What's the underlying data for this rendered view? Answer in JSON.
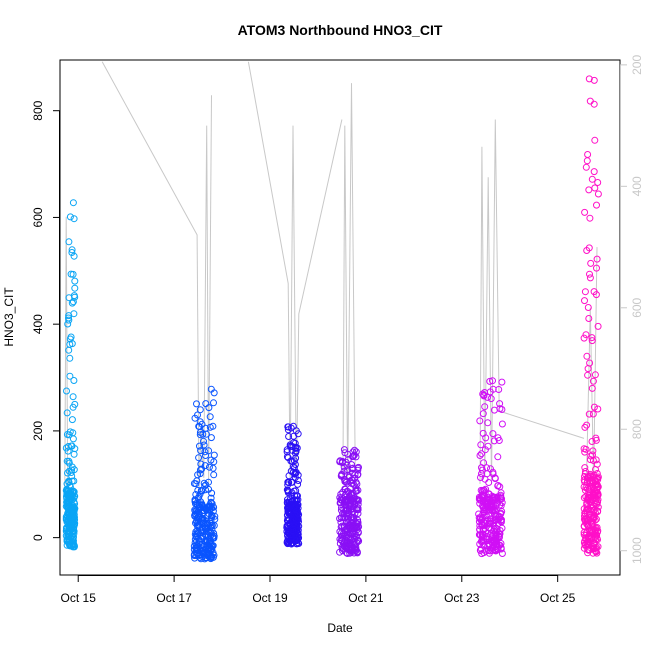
{
  "chart_data": {
    "type": "scatter",
    "title": "ATOM3 Northbound HNO3_CIT",
    "xlabel": "Date",
    "ylabel": "HNO3_CIT",
    "xlim": [
      14.62,
      26.3
    ],
    "ylim": [
      -70,
      895
    ],
    "x_ticks": [
      {
        "value": 15,
        "label": "Oct 15"
      },
      {
        "value": 17,
        "label": "Oct 17"
      },
      {
        "value": 19,
        "label": "Oct 19"
      },
      {
        "value": 21,
        "label": "Oct 21"
      },
      {
        "value": 23,
        "label": "Oct 23"
      },
      {
        "value": 25,
        "label": "Oct 25"
      }
    ],
    "y_ticks": [
      0,
      200,
      400,
      600,
      800
    ],
    "y2_axis": {
      "description": "pressure (hPa), reversed",
      "lim_top": 192,
      "lim_bottom": 1040,
      "ticks": [
        200,
        400,
        600,
        800,
        1000
      ],
      "color": "#c8c8c8"
    },
    "series": [
      {
        "flight": 1,
        "color": "#0aa5f5",
        "x_range": [
          14.75,
          14.93
        ],
        "y_base_max": 90,
        "y_peak": 630,
        "y_min": -18
      },
      {
        "flight": 2,
        "color": "#0a55ff",
        "x_range": [
          17.42,
          17.85
        ],
        "y_base_max": 60,
        "y_peak": 280,
        "y_min": -40
      },
      {
        "flight": 3,
        "color": "#2a10f5",
        "x_range": [
          19.35,
          19.6
        ],
        "y_base_max": 60,
        "y_peak": 210,
        "y_min": -12
      },
      {
        "flight": 4,
        "color": "#8a10f5",
        "x_range": [
          20.45,
          20.85
        ],
        "y_base_max": 70,
        "y_peak": 165,
        "y_min": -30
      },
      {
        "flight": 5,
        "color": "#d010f5",
        "x_range": [
          23.35,
          23.85
        ],
        "y_base_max": 80,
        "y_peak": 305,
        "y_min": -30
      },
      {
        "flight": 6,
        "color": "#ff10c8",
        "x_range": [
          25.55,
          25.85
        ],
        "y_base_max": 120,
        "y_peak": 860,
        "y_min": -30
      }
    ],
    "pressure_trace": {
      "color": "#c8c8c8",
      "segments": [
        [
          [
            14.72,
            900
          ],
          [
            14.75,
            450
          ],
          [
            14.78,
            900
          ],
          [
            14.8,
            880
          ]
        ],
        [
          [
            15.5,
            195
          ],
          [
            17.48,
            480
          ],
          [
            17.52,
            900
          ],
          [
            17.56,
            800
          ],
          [
            17.62,
            880
          ],
          [
            17.68,
            300
          ],
          [
            17.72,
            890
          ],
          [
            17.78,
            250
          ]
        ],
        [
          [
            18.55,
            195
          ],
          [
            19.38,
            560
          ],
          [
            19.42,
            890
          ],
          [
            19.48,
            300
          ],
          [
            19.55,
            890
          ],
          [
            19.6,
            610
          ],
          [
            20.5,
            290
          ]
        ],
        [
          [
            20.52,
            890
          ],
          [
            20.56,
            300
          ],
          [
            20.62,
            890
          ],
          [
            20.7,
            230
          ],
          [
            20.78,
            880
          ]
        ],
        [
          [
            23.38,
            890
          ],
          [
            23.42,
            335
          ],
          [
            23.48,
            880
          ],
          [
            23.55,
            385
          ],
          [
            23.62,
            890
          ],
          [
            23.7,
            290
          ],
          [
            23.78,
            770
          ],
          [
            25.55,
            815
          ]
        ],
        [
          [
            25.6,
            890
          ],
          [
            25.68,
            600
          ],
          [
            25.75,
            890
          ],
          [
            25.82,
            500
          ]
        ]
      ]
    },
    "grid": false,
    "legend": "none"
  }
}
